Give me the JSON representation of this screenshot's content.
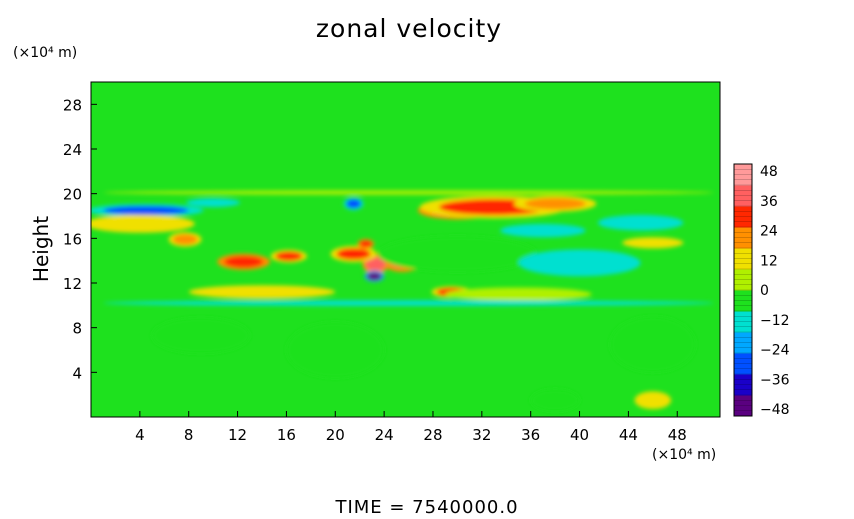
{
  "chart_data": {
    "type": "heatmap",
    "title": "zonal velocity",
    "ylabel": "Height",
    "xlabel": "",
    "x_unit": "(×10⁴ m)",
    "y_unit": "(×10⁴ m)",
    "xlim": [
      0,
      51.5
    ],
    "ylim": [
      0,
      30
    ],
    "x_ticks": [
      4,
      8,
      12,
      16,
      20,
      24,
      28,
      32,
      36,
      40,
      44,
      48
    ],
    "y_ticks": [
      4,
      8,
      12,
      16,
      20,
      24,
      28
    ],
    "colorbar": {
      "min": -48,
      "max": 48,
      "labels": [
        48,
        36,
        24,
        12,
        0,
        -12,
        -24,
        -36,
        -48
      ]
    },
    "background_value": 0,
    "features": [
      {
        "x": 30,
        "y": 18.5,
        "rx": 2.4,
        "ry": 0.55,
        "value": 40
      },
      {
        "x": 33,
        "y": 18.8,
        "rx": 4.5,
        "ry": 0.7,
        "value": 30
      },
      {
        "x": 38,
        "y": 19.1,
        "rx": 2.5,
        "ry": 0.5,
        "value": 26
      },
      {
        "x": 25.5,
        "y": 14.3,
        "rx": 1.4,
        "ry": 0.9,
        "value": 42
      },
      {
        "x": 23.3,
        "y": 13.7,
        "rx": 0.8,
        "ry": 0.6,
        "value": 36
      },
      {
        "x": 21.5,
        "y": 14.6,
        "rx": 1.4,
        "ry": 0.5,
        "value": 30
      },
      {
        "x": 23.2,
        "y": 12.6,
        "rx": 0.6,
        "ry": 0.35,
        "value": -44
      },
      {
        "x": 12.5,
        "y": 13.9,
        "rx": 1.6,
        "ry": 0.5,
        "value": 32
      },
      {
        "x": 16.2,
        "y": 14.4,
        "rx": 1.1,
        "ry": 0.4,
        "value": 28
      },
      {
        "x": 7.7,
        "y": 15.9,
        "rx": 1.0,
        "ry": 0.45,
        "value": 26
      },
      {
        "x": 29.5,
        "y": 11.2,
        "rx": 1.2,
        "ry": 0.35,
        "value": 30
      },
      {
        "x": 22.5,
        "y": 15.5,
        "rx": 0.5,
        "ry": 0.3,
        "value": 34
      },
      {
        "x": 4.5,
        "y": 18.5,
        "rx": 3.5,
        "ry": 0.4,
        "value": -28
      },
      {
        "x": 10,
        "y": 19.2,
        "rx": 2.2,
        "ry": 0.4,
        "value": -16
      },
      {
        "x": 21.5,
        "y": 19.1,
        "rx": 0.6,
        "ry": 0.4,
        "value": -30
      },
      {
        "x": 30,
        "y": 14.6,
        "rx": 6.5,
        "ry": 1.6,
        "value": -8
      },
      {
        "x": 40,
        "y": 13.8,
        "rx": 5,
        "ry": 1.2,
        "value": -10
      },
      {
        "x": 46,
        "y": 15.6,
        "rx": 2.5,
        "ry": 0.5,
        "value": 14
      },
      {
        "x": 45,
        "y": 17.4,
        "rx": 3.5,
        "ry": 0.7,
        "value": -10
      },
      {
        "x": 4,
        "y": 17.3,
        "rx": 4.5,
        "ry": 0.8,
        "value": 12
      },
      {
        "x": 37,
        "y": 16.7,
        "rx": 3.5,
        "ry": 0.6,
        "value": -12
      },
      {
        "x": 14,
        "y": 11.2,
        "rx": 6,
        "ry": 0.6,
        "value": 10
      },
      {
        "x": 35,
        "y": 11.0,
        "rx": 6,
        "ry": 0.6,
        "value": 8
      },
      {
        "x": 46,
        "y": 6.5,
        "rx": 3.5,
        "ry": 2.5,
        "value": -7
      },
      {
        "x": 20,
        "y": 6,
        "rx": 4,
        "ry": 2.5,
        "value": -5
      },
      {
        "x": 9,
        "y": 7.3,
        "rx": 4,
        "ry": 1.6,
        "value": -4
      },
      {
        "x": 38,
        "y": 1.5,
        "rx": 2,
        "ry": 1.0,
        "value": -8
      },
      {
        "x": 46,
        "y": 1.5,
        "rx": 1.5,
        "ry": 0.8,
        "value": 10
      },
      {
        "x": 26,
        "y": 10.2,
        "rx": 25,
        "ry": 0.25,
        "value": -9
      },
      {
        "x": 26,
        "y": 20.1,
        "rx": 25,
        "ry": 0.2,
        "value": 6
      }
    ]
  },
  "footer": {
    "time_label": "TIME  =  7540000.0"
  }
}
